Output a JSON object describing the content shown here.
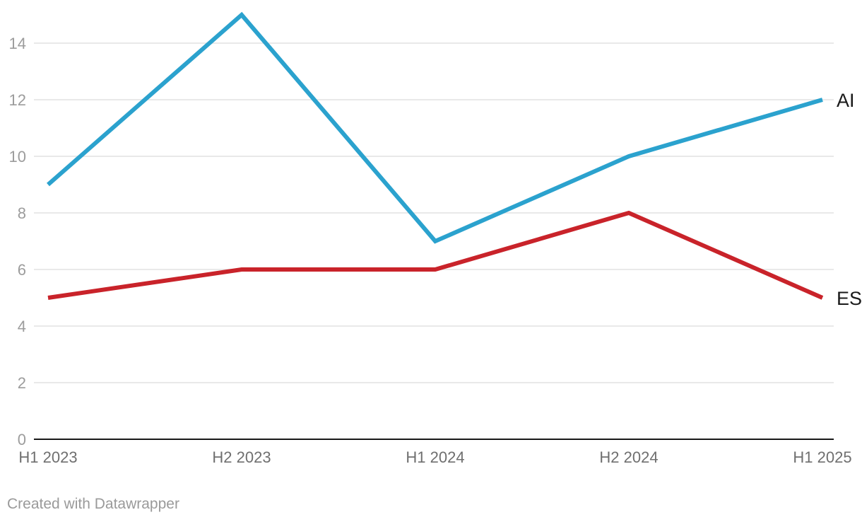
{
  "chart_data": {
    "type": "line",
    "title": "",
    "x_categories": [
      "H1 2023",
      "H2 2023",
      "H1 2024",
      "H2 2024",
      "H1 2025"
    ],
    "series": [
      {
        "name": "AI",
        "values": [
          9,
          15,
          7,
          10,
          12
        ],
        "color": "#2ba2ce"
      },
      {
        "name": "ES",
        "values": [
          5,
          6,
          6,
          8,
          5
        ],
        "color": "#c9232a"
      }
    ],
    "y_ticks": [
      0,
      2,
      4,
      6,
      8,
      10,
      12,
      14
    ],
    "y_range": [
      0,
      15
    ],
    "grid": "horizontal",
    "legend": "line-end-labels"
  },
  "footer": {
    "credit": "Created with Datawrapper"
  },
  "colors": {
    "background": "#ffffff",
    "grid": "#e9e9e9",
    "axis": "#181818",
    "y_tick_text": "#9c9c9c",
    "x_tick_text": "#6f6f6f",
    "series_label_text": "#1a1a1a",
    "footer_text": "#9a9a9a"
  }
}
